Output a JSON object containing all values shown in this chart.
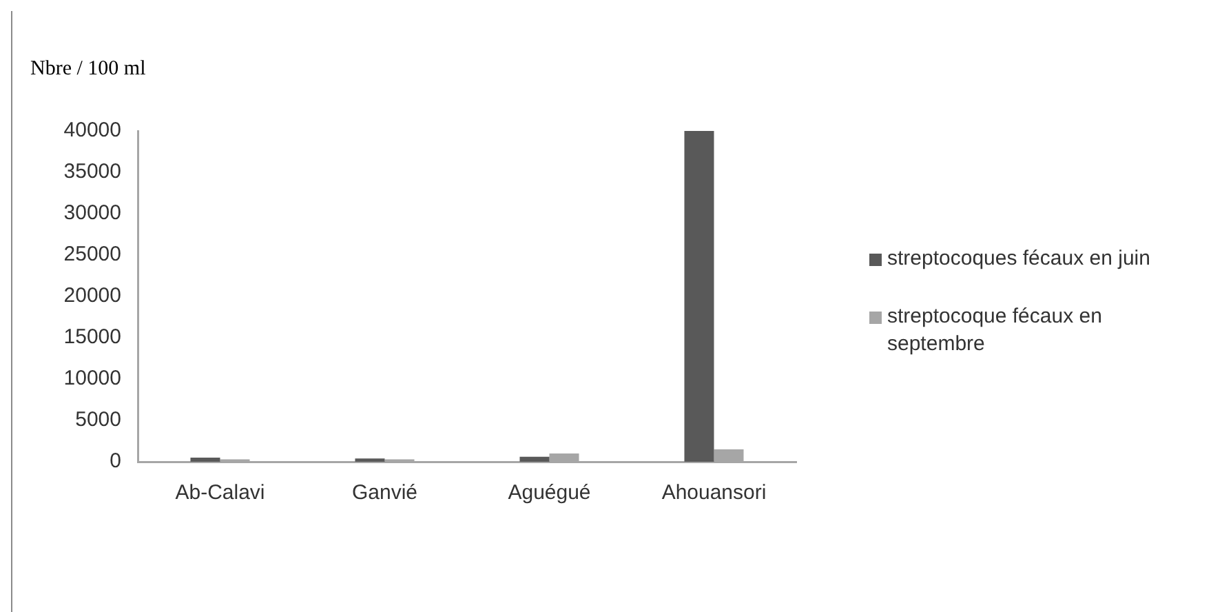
{
  "chart_data": {
    "type": "bar",
    "ylabel": "Nbre / 100 ml",
    "categories": [
      "Ab-Calavi",
      "Ganvié",
      "Aguégué",
      "Ahouansori"
    ],
    "series": [
      {
        "name": "streptocoques fécaux en juin",
        "color": "#595959",
        "values": [
          500,
          400,
          600,
          40000
        ]
      },
      {
        "name": "streptocoque fécaux en septembre",
        "color": "#a6a6a6",
        "values": [
          300,
          300,
          1000,
          1500
        ]
      }
    ],
    "ylim": [
      0,
      40000
    ],
    "yticks": [
      0,
      5000,
      10000,
      15000,
      20000,
      25000,
      30000,
      35000,
      40000
    ],
    "legend": "right"
  }
}
